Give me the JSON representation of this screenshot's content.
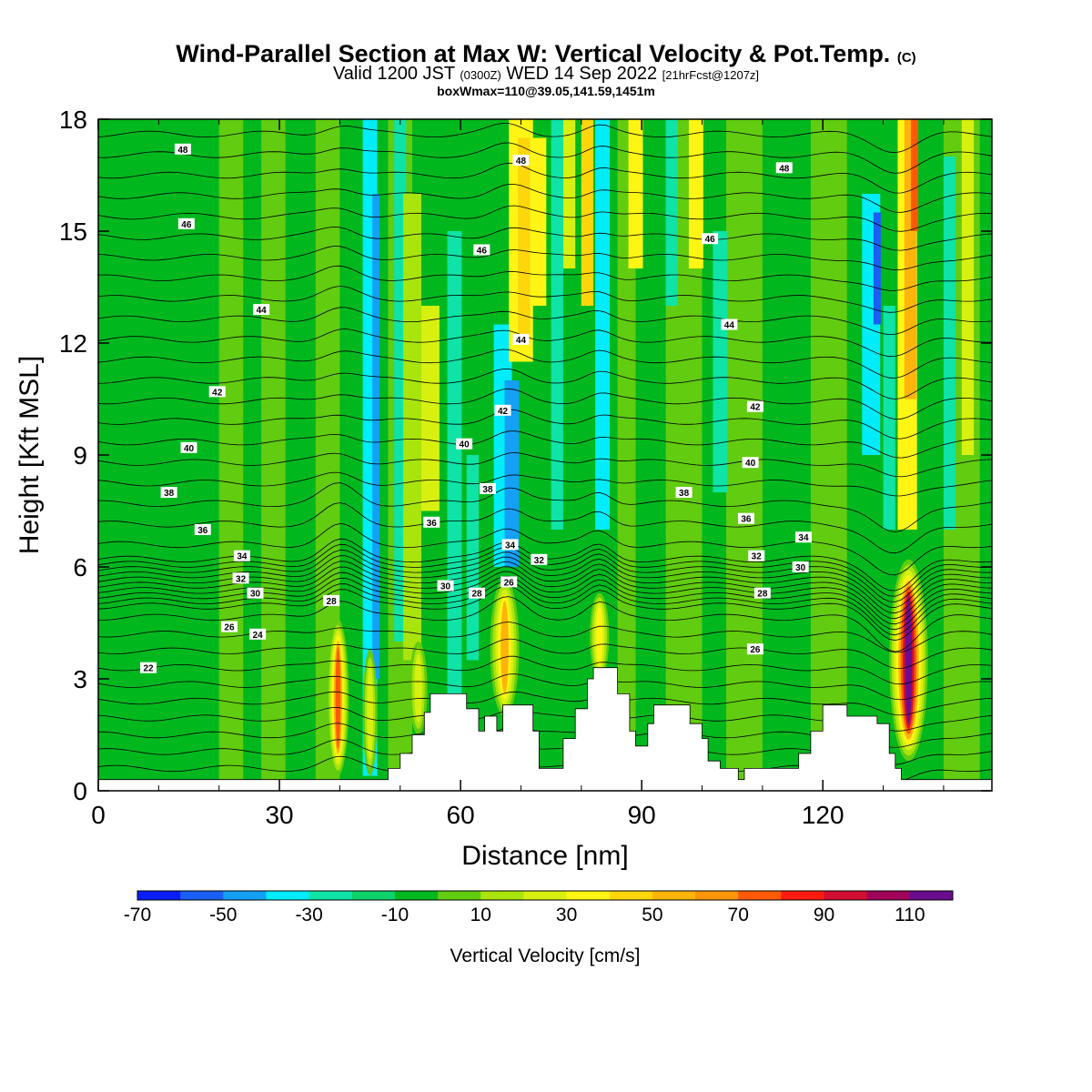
{
  "title": {
    "line1": "Wind-Parallel Section at Max W: Vertical Velocity & Pot.Temp.",
    "line1_mark": "(C)",
    "line2_a": "Valid 1200 JST",
    "line2_b": "(0300Z)",
    "line2_c": "WED 14 Sep 2022",
    "line2_d": "[21hrFcst@1207z]",
    "line3": "boxWmax=110@39.05,141.59,1451m"
  },
  "chart_data": {
    "type": "heatmap",
    "xlabel": "Distance [nm]",
    "ylabel": "Height [Kft MSL]",
    "xlim": [
      0,
      148
    ],
    "ylim": [
      0,
      18
    ],
    "xticks": [
      0,
      30,
      60,
      90,
      120
    ],
    "yticks": [
      0,
      3,
      6,
      9,
      12,
      15,
      18
    ],
    "colorbar": {
      "label": "Vertical Velocity [cm/s]",
      "levels": [
        -70,
        -60,
        -50,
        -40,
        -30,
        -20,
        -10,
        0,
        10,
        20,
        30,
        40,
        50,
        60,
        70,
        80,
        90,
        100,
        110,
        120
      ],
      "tick_labels": [
        -70,
        -50,
        -30,
        -10,
        10,
        30,
        50,
        70,
        90,
        110
      ],
      "colors": [
        "#0a1ef5",
        "#1a5ff5",
        "#14a0f5",
        "#00ecf8",
        "#0fe3a6",
        "#0fd26a",
        "#00b81e",
        "#62cc10",
        "#a9e40c",
        "#d8f010",
        "#fef514",
        "#fed60c",
        "#feb40a",
        "#fe960a",
        "#fe5a06",
        "#fe1a0e",
        "#d20d32",
        "#a0055a",
        "#6b0d8e"
      ]
    },
    "contour_labels": [
      {
        "x": 14,
        "y": 17.2,
        "label": "48"
      },
      {
        "x": 14.6,
        "y": 15.2,
        "label": "46"
      },
      {
        "x": 27,
        "y": 12.9,
        "label": "44"
      },
      {
        "x": 19.7,
        "y": 10.7,
        "label": "42"
      },
      {
        "x": 15,
        "y": 9.2,
        "label": "40"
      },
      {
        "x": 11.7,
        "y": 8.0,
        "label": "38"
      },
      {
        "x": 17.3,
        "y": 7.0,
        "label": "36"
      },
      {
        "x": 23.8,
        "y": 6.3,
        "label": "34"
      },
      {
        "x": 23.6,
        "y": 5.7,
        "label": "32"
      },
      {
        "x": 26,
        "y": 5.3,
        "label": "30"
      },
      {
        "x": 21.7,
        "y": 4.4,
        "label": "26"
      },
      {
        "x": 26.4,
        "y": 4.2,
        "label": "24"
      },
      {
        "x": 8.3,
        "y": 3.3,
        "label": "22"
      },
      {
        "x": 38.6,
        "y": 5.1,
        "label": "28"
      },
      {
        "x": 70,
        "y": 16.9,
        "label": "48"
      },
      {
        "x": 63.5,
        "y": 14.5,
        "label": "46"
      },
      {
        "x": 70,
        "y": 12.1,
        "label": "44"
      },
      {
        "x": 67,
        "y": 10.2,
        "label": "42"
      },
      {
        "x": 60.6,
        "y": 9.3,
        "label": "40"
      },
      {
        "x": 64.5,
        "y": 8.1,
        "label": "38"
      },
      {
        "x": 55.2,
        "y": 7.2,
        "label": "36"
      },
      {
        "x": 68.2,
        "y": 6.6,
        "label": "34"
      },
      {
        "x": 73,
        "y": 6.2,
        "label": "32"
      },
      {
        "x": 57.5,
        "y": 5.5,
        "label": "30"
      },
      {
        "x": 62.7,
        "y": 5.3,
        "label": "28"
      },
      {
        "x": 68,
        "y": 5.6,
        "label": "26"
      },
      {
        "x": 113.6,
        "y": 16.7,
        "label": "48"
      },
      {
        "x": 101.3,
        "y": 14.8,
        "label": "46"
      },
      {
        "x": 104.5,
        "y": 12.5,
        "label": "44"
      },
      {
        "x": 108.8,
        "y": 10.3,
        "label": "42"
      },
      {
        "x": 108,
        "y": 8.8,
        "label": "40"
      },
      {
        "x": 97,
        "y": 8.0,
        "label": "38"
      },
      {
        "x": 107.3,
        "y": 7.3,
        "label": "36"
      },
      {
        "x": 116.8,
        "y": 6.8,
        "label": "34"
      },
      {
        "x": 109,
        "y": 6.3,
        "label": "32"
      },
      {
        "x": 116.3,
        "y": 6.0,
        "label": "30"
      },
      {
        "x": 110,
        "y": 5.3,
        "label": "28"
      },
      {
        "x": 108.8,
        "y": 3.8,
        "label": "26"
      }
    ],
    "max_w": 110
  }
}
